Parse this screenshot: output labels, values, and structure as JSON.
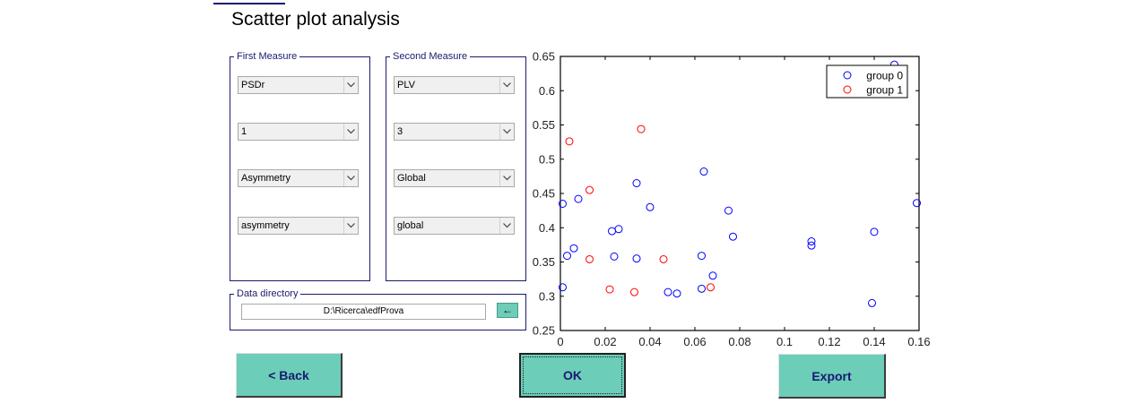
{
  "title": "Scatter plot analysis",
  "first_measure": {
    "label": "First Measure",
    "selects": [
      "PSDr",
      "1",
      "Asymmetry",
      "asymmetry"
    ]
  },
  "second_measure": {
    "label": "Second Measure",
    "selects": [
      "PLV",
      "3",
      "Global",
      "global"
    ]
  },
  "data_directory": {
    "label": "Data directory",
    "path": "D:\\Ricerca\\edfProva",
    "browse_label": "←"
  },
  "buttons": {
    "back": "<  Back",
    "ok": "OK",
    "export": "Export"
  },
  "colors": {
    "accent_button": "#6ccdb9",
    "group0": "#0000ff",
    "group1": "#ff0000"
  },
  "chart_data": {
    "type": "scatter",
    "xlim": [
      0,
      0.16
    ],
    "ylim": [
      0.25,
      0.65
    ],
    "x_ticks": [
      "0",
      "0.02",
      "0.04",
      "0.06",
      "0.08",
      "0.1",
      "0.12",
      "0.14",
      "0.16"
    ],
    "y_ticks": [
      "0.25",
      "0.3",
      "0.35",
      "0.4",
      "0.45",
      "0.5",
      "0.55",
      "0.6",
      "0.65"
    ],
    "legend_position": "top-right",
    "grid": false,
    "series": [
      {
        "name": "group 0",
        "color": "#0000ff",
        "points": [
          [
            0.001,
            0.313
          ],
          [
            0.001,
            0.435
          ],
          [
            0.003,
            0.359
          ],
          [
            0.006,
            0.37
          ],
          [
            0.008,
            0.442
          ],
          [
            0.023,
            0.395
          ],
          [
            0.024,
            0.358
          ],
          [
            0.026,
            0.398
          ],
          [
            0.034,
            0.355
          ],
          [
            0.034,
            0.465
          ],
          [
            0.04,
            0.43
          ],
          [
            0.048,
            0.306
          ],
          [
            0.052,
            0.304
          ],
          [
            0.063,
            0.311
          ],
          [
            0.063,
            0.359
          ],
          [
            0.064,
            0.482
          ],
          [
            0.068,
            0.33
          ],
          [
            0.075,
            0.425
          ],
          [
            0.077,
            0.387
          ],
          [
            0.112,
            0.38
          ],
          [
            0.112,
            0.374
          ],
          [
            0.139,
            0.29
          ],
          [
            0.14,
            0.394
          ],
          [
            0.149,
            0.638
          ],
          [
            0.159,
            0.436
          ]
        ]
      },
      {
        "name": "group 1",
        "color": "#ff0000",
        "points": [
          [
            0.004,
            0.526
          ],
          [
            0.013,
            0.455
          ],
          [
            0.013,
            0.354
          ],
          [
            0.022,
            0.31
          ],
          [
            0.033,
            0.306
          ],
          [
            0.036,
            0.544
          ],
          [
            0.046,
            0.354
          ],
          [
            0.067,
            0.313
          ]
        ]
      }
    ]
  }
}
